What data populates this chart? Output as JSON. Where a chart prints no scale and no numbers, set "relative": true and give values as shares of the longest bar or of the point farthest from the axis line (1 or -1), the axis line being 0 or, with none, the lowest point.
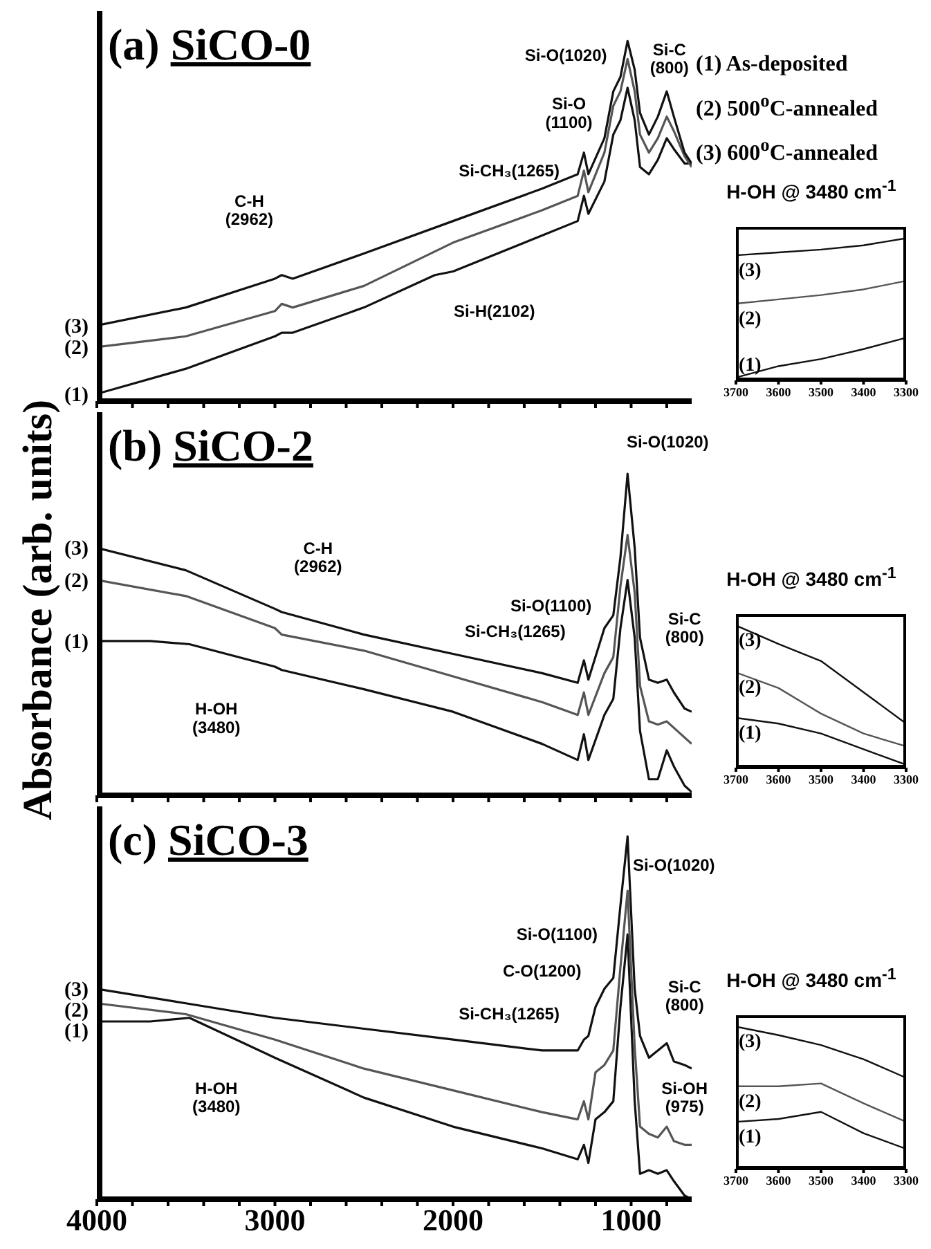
{
  "chart_data": [
    {
      "type": "line",
      "title": "(a) SiCO-0",
      "relative": true,
      "xlim": [
        4000,
        660
      ],
      "xticks": [
        4000,
        {
          "value": 3800,
          "label": null
        },
        {
          "value": 3600,
          "label": null
        },
        {
          "value": 3400,
          "label": null
        },
        {
          "value": 3200,
          "label": null
        },
        3000,
        {
          "value": 2800,
          "label": null
        },
        {
          "value": 2600,
          "label": null
        },
        {
          "value": 2400,
          "label": null
        },
        {
          "value": 2200,
          "label": null
        },
        2000,
        {
          "value": 1800,
          "label": null
        },
        {
          "value": 1600,
          "label": null
        },
        {
          "value": 1400,
          "label": null
        },
        {
          "value": 1200,
          "label": null
        },
        1000,
        {
          "value": 800,
          "label": null
        }
      ],
      "tick_labels": false,
      "grid": false,
      "legend": false,
      "marker": "none",
      "line_style": "solid",
      "series": [
        {
          "name": "(1)",
          "color": "#111111",
          "x": [
            4000,
            3500,
            3000,
            2962,
            2900,
            2500,
            2102,
            2000,
            1500,
            1300,
            1265,
            1240,
            1150,
            1100,
            1060,
            1020,
            980,
            950,
            900,
            850,
            800,
            760,
            700,
            660
          ],
          "values": [
            0.02,
            0.09,
            0.18,
            0.19,
            0.19,
            0.26,
            0.35,
            0.36,
            0.46,
            0.5,
            0.57,
            0.52,
            0.61,
            0.74,
            0.78,
            0.87,
            0.78,
            0.65,
            0.63,
            0.67,
            0.73,
            0.7,
            0.66,
            0.66
          ]
        },
        {
          "name": "(2)",
          "color": "#555555",
          "x": [
            4000,
            3500,
            3000,
            2962,
            2900,
            2500,
            2000,
            1500,
            1300,
            1265,
            1240,
            1150,
            1100,
            1060,
            1020,
            980,
            950,
            900,
            850,
            800,
            760,
            700,
            660
          ],
          "values": [
            0.15,
            0.18,
            0.25,
            0.27,
            0.26,
            0.32,
            0.44,
            0.53,
            0.57,
            0.64,
            0.58,
            0.69,
            0.82,
            0.86,
            0.95,
            0.86,
            0.74,
            0.69,
            0.73,
            0.79,
            0.75,
            0.68,
            0.65
          ]
        },
        {
          "name": "(3)",
          "color": "#111111",
          "x": [
            4000,
            3500,
            3000,
            2962,
            2900,
            2500,
            2000,
            1500,
            1300,
            1265,
            1240,
            1150,
            1100,
            1060,
            1020,
            980,
            950,
            900,
            850,
            800,
            760,
            700,
            660
          ],
          "values": [
            0.21,
            0.26,
            0.34,
            0.35,
            0.34,
            0.41,
            0.5,
            0.59,
            0.63,
            0.69,
            0.63,
            0.73,
            0.86,
            0.9,
            1.0,
            0.92,
            0.8,
            0.74,
            0.79,
            0.86,
            0.79,
            0.69,
            0.66
          ]
        }
      ],
      "annotations": [
        "C-H\n(2962)",
        "Si-H(2102)",
        "Si-CH₃(1265)",
        "Si-O\n(1100)",
        "Si-O(1020)",
        "Si-C\n(800)",
        "(1) As-deposited",
        "(2) 500$^{o}$C-annealed",
        "(3) 600$^{o}$C-annealed"
      ]
    },
    {
      "type": "line",
      "title": "H-OH @ 3480 cm$^{-1}$",
      "relative": true,
      "xlim": [
        3700,
        3300
      ],
      "xticks": [
        3700,
        3600,
        3500,
        3400,
        3300
      ],
      "grid": false,
      "legend": false,
      "marker": "none",
      "line_style": "solid",
      "x": [
        3700,
        3600,
        3500,
        3400,
        3300
      ],
      "series": [
        {
          "name": "(1)",
          "color": "#111111",
          "values": [
            0.02,
            0.1,
            0.15,
            0.22,
            0.3
          ]
        },
        {
          "name": "(2)",
          "color": "#555555",
          "values": [
            0.54,
            0.57,
            0.6,
            0.64,
            0.7
          ]
        },
        {
          "name": "(3)",
          "color": "#111111",
          "values": [
            0.88,
            0.9,
            0.92,
            0.95,
            1.0
          ]
        }
      ]
    },
    {
      "type": "line",
      "title": "(b) SiCO-2",
      "ylabel": "Absorbance (arb. units)",
      "relative": true,
      "xlim": [
        4000,
        660
      ],
      "xticks": [
        4000,
        {
          "value": 3800,
          "label": null
        },
        {
          "value": 3600,
          "label": null
        },
        {
          "value": 3400,
          "label": null
        },
        {
          "value": 3200,
          "label": null
        },
        3000,
        {
          "value": 2800,
          "label": null
        },
        {
          "value": 2600,
          "label": null
        },
        {
          "value": 2400,
          "label": null
        },
        {
          "value": 2200,
          "label": null
        },
        2000,
        {
          "value": 1800,
          "label": null
        },
        {
          "value": 1600,
          "label": null
        },
        {
          "value": 1400,
          "label": null
        },
        {
          "value": 1200,
          "label": null
        },
        1000,
        {
          "value": 800,
          "label": null
        }
      ],
      "tick_labels": false,
      "grid": false,
      "legend": false,
      "marker": "none",
      "line_style": "solid",
      "series": [
        {
          "name": "(1)",
          "color": "#111111",
          "x": [
            4000,
            3700,
            3480,
            3000,
            2962,
            2500,
            2000,
            1500,
            1300,
            1265,
            1240,
            1150,
            1100,
            1060,
            1020,
            980,
            950,
            900,
            850,
            800,
            760,
            700,
            660
          ],
          "values": [
            0.48,
            0.48,
            0.47,
            0.4,
            0.39,
            0.33,
            0.26,
            0.16,
            0.11,
            0.19,
            0.11,
            0.25,
            0.3,
            0.52,
            0.67,
            0.49,
            0.2,
            0.05,
            0.05,
            0.14,
            0.09,
            0.03,
            0.01
          ]
        },
        {
          "name": "(2)",
          "color": "#555555",
          "x": [
            4000,
            3500,
            3000,
            2962,
            2500,
            2000,
            1500,
            1300,
            1265,
            1240,
            1150,
            1100,
            1060,
            1020,
            980,
            950,
            900,
            850,
            800,
            760,
            700,
            660
          ],
          "values": [
            0.67,
            0.62,
            0.52,
            0.5,
            0.45,
            0.37,
            0.29,
            0.25,
            0.32,
            0.25,
            0.38,
            0.43,
            0.65,
            0.81,
            0.63,
            0.34,
            0.23,
            0.22,
            0.23,
            0.21,
            0.18,
            0.16
          ]
        },
        {
          "name": "(3)",
          "color": "#111111",
          "x": [
            4000,
            3500,
            3000,
            2962,
            2500,
            2000,
            1500,
            1300,
            1265,
            1240,
            1150,
            1100,
            1060,
            1020,
            980,
            950,
            900,
            850,
            800,
            760,
            700,
            660
          ],
          "values": [
            0.77,
            0.7,
            0.58,
            0.57,
            0.5,
            0.44,
            0.38,
            0.35,
            0.42,
            0.36,
            0.52,
            0.56,
            0.74,
            1.0,
            0.77,
            0.49,
            0.36,
            0.35,
            0.36,
            0.32,
            0.27,
            0.26
          ]
        }
      ],
      "annotations": [
        "C-H\n(2962)",
        "H-OH\n(3480)",
        "Si-O(1100)",
        "Si-CH₃(1265)",
        "Si-O(1020)",
        "Si-C\n(800)"
      ]
    },
    {
      "type": "line",
      "title": "H-OH @ 3480 cm$^{-1}$",
      "relative": true,
      "xlim": [
        3700,
        3300
      ],
      "xticks": [
        3700,
        3600,
        3500,
        3400,
        3300
      ],
      "grid": false,
      "legend": false,
      "marker": "none",
      "line_style": "solid",
      "x": [
        3700,
        3600,
        3500,
        3400,
        3300
      ],
      "series": [
        {
          "name": "(1)",
          "color": "#111111",
          "values": [
            0.35,
            0.31,
            0.24,
            0.13,
            0.02
          ]
        },
        {
          "name": "(2)",
          "color": "#555555",
          "values": [
            0.67,
            0.56,
            0.38,
            0.24,
            0.15
          ]
        },
        {
          "name": "(3)",
          "color": "#111111",
          "values": [
            1.0,
            0.87,
            0.75,
            0.53,
            0.31
          ]
        }
      ]
    },
    {
      "type": "line",
      "title": "(c) SiCO-3",
      "relative": true,
      "xlim": [
        4000,
        660
      ],
      "xticks": [
        4000,
        {
          "value": 3800,
          "label": null
        },
        {
          "value": 3600,
          "label": null
        },
        {
          "value": 3400,
          "label": null
        },
        {
          "value": 3200,
          "label": null
        },
        3000,
        {
          "value": 2800,
          "label": null
        },
        {
          "value": 2600,
          "label": null
        },
        {
          "value": 2400,
          "label": null
        },
        {
          "value": 2200,
          "label": null
        },
        2000,
        {
          "value": 1800,
          "label": null
        },
        {
          "value": 1600,
          "label": null
        },
        {
          "value": 1400,
          "label": null
        },
        {
          "value": 1200,
          "label": null
        },
        1000,
        {
          "value": 800,
          "label": null
        }
      ],
      "grid": false,
      "legend": false,
      "marker": "none",
      "line_style": "solid",
      "series": [
        {
          "name": "(1)",
          "color": "#111111",
          "x": [
            4000,
            3700,
            3480,
            3000,
            2500,
            2000,
            1500,
            1300,
            1265,
            1240,
            1200,
            1150,
            1100,
            1060,
            1020,
            980,
            950,
            900,
            850,
            800,
            760,
            700,
            660
          ],
          "values": [
            0.49,
            0.49,
            0.5,
            0.39,
            0.28,
            0.2,
            0.14,
            0.11,
            0.15,
            0.1,
            0.22,
            0.24,
            0.27,
            0.53,
            0.73,
            0.27,
            0.07,
            0.08,
            0.07,
            0.08,
            0.05,
            0.01,
            0.0
          ]
        },
        {
          "name": "(2)",
          "color": "#555555",
          "x": [
            4000,
            3500,
            3000,
            2500,
            2000,
            1500,
            1300,
            1265,
            1240,
            1200,
            1150,
            1100,
            1060,
            1020,
            980,
            950,
            900,
            850,
            800,
            760,
            700,
            660
          ],
          "values": [
            0.54,
            0.51,
            0.44,
            0.36,
            0.3,
            0.24,
            0.22,
            0.27,
            0.22,
            0.35,
            0.37,
            0.41,
            0.64,
            0.85,
            0.42,
            0.2,
            0.18,
            0.17,
            0.2,
            0.16,
            0.15,
            0.15
          ]
        },
        {
          "name": "(3)",
          "color": "#111111",
          "x": [
            4000,
            3500,
            3000,
            2500,
            2000,
            1500,
            1300,
            1265,
            1240,
            1200,
            1150,
            1100,
            1060,
            1020,
            980,
            950,
            900,
            850,
            800,
            760,
            700,
            660
          ],
          "values": [
            0.58,
            0.54,
            0.5,
            0.47,
            0.44,
            0.41,
            0.41,
            0.44,
            0.45,
            0.53,
            0.58,
            0.61,
            0.81,
            1.0,
            0.58,
            0.45,
            0.39,
            0.41,
            0.43,
            0.38,
            0.37,
            0.36
          ]
        }
      ],
      "annotations": [
        "H-OH\n(3480)",
        "Si-O(1100)",
        "C-O(1200)",
        "Si-CH₃(1265)",
        "Si-O(1020)",
        "Si-C\n(800)",
        "Si-OH\n(975)"
      ]
    },
    {
      "type": "line",
      "title": "H-OH @ 3480 cm$^{-1}$",
      "relative": true,
      "xlim": [
        3700,
        3300
      ],
      "xticks": [
        3700,
        3600,
        3500,
        3400,
        3300
      ],
      "grid": false,
      "legend": false,
      "marker": "none",
      "line_style": "solid",
      "x": [
        3700,
        3600,
        3500,
        3400,
        3300
      ],
      "series": [
        {
          "name": "(1)",
          "color": "#111111",
          "values": [
            0.33,
            0.35,
            0.4,
            0.25,
            0.14
          ]
        },
        {
          "name": "(2)",
          "color": "#555555",
          "values": [
            0.58,
            0.58,
            0.6,
            0.46,
            0.33
          ]
        },
        {
          "name": "(3)",
          "color": "#111111",
          "values": [
            1.0,
            0.94,
            0.87,
            0.77,
            0.64
          ]
        }
      ]
    }
  ]
}
